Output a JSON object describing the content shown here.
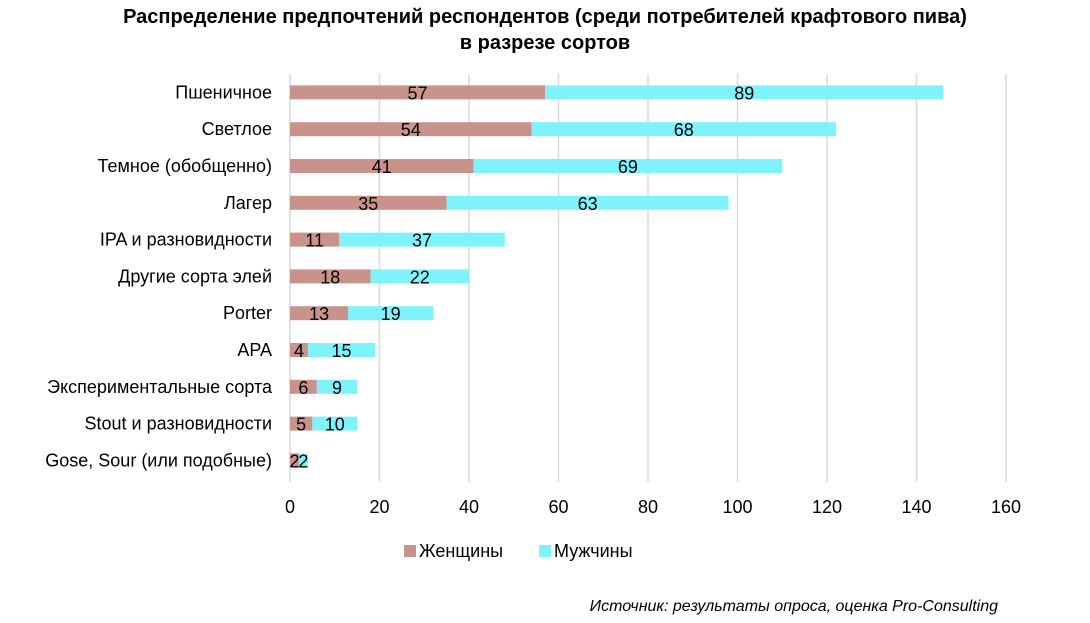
{
  "chart_data": {
    "type": "bar",
    "orientation": "horizontal",
    "stacked": true,
    "title_lines": [
      "Распределение предпочтений респондентов (среди потребителей крафтового пива)",
      "в разрезе сортов"
    ],
    "categories": [
      "Пшеничное",
      "Светлое",
      "Темное (обобщенно)",
      "Лагер",
      "IPA и разновидности",
      "Другие сорта элей",
      "Porter",
      "APA",
      "Экспериментальные сорта",
      "Stout и разновидности",
      "Gose, Sour (или подобные)"
    ],
    "series": [
      {
        "name": "Женщины",
        "color": "#c9928a",
        "values": [
          57,
          54,
          41,
          35,
          11,
          18,
          13,
          4,
          6,
          5,
          2
        ]
      },
      {
        "name": "Мужчины",
        "color": "#7ff3fb",
        "values": [
          89,
          68,
          69,
          63,
          37,
          22,
          19,
          15,
          9,
          10,
          2
        ]
      }
    ],
    "xlim": [
      0,
      160
    ],
    "xticks": [
      0,
      20,
      40,
      60,
      80,
      100,
      120,
      140,
      160
    ],
    "grid": true,
    "legend_position": "bottom",
    "source": "Источник: результаты опроса, оценка Pro-Consulting"
  }
}
